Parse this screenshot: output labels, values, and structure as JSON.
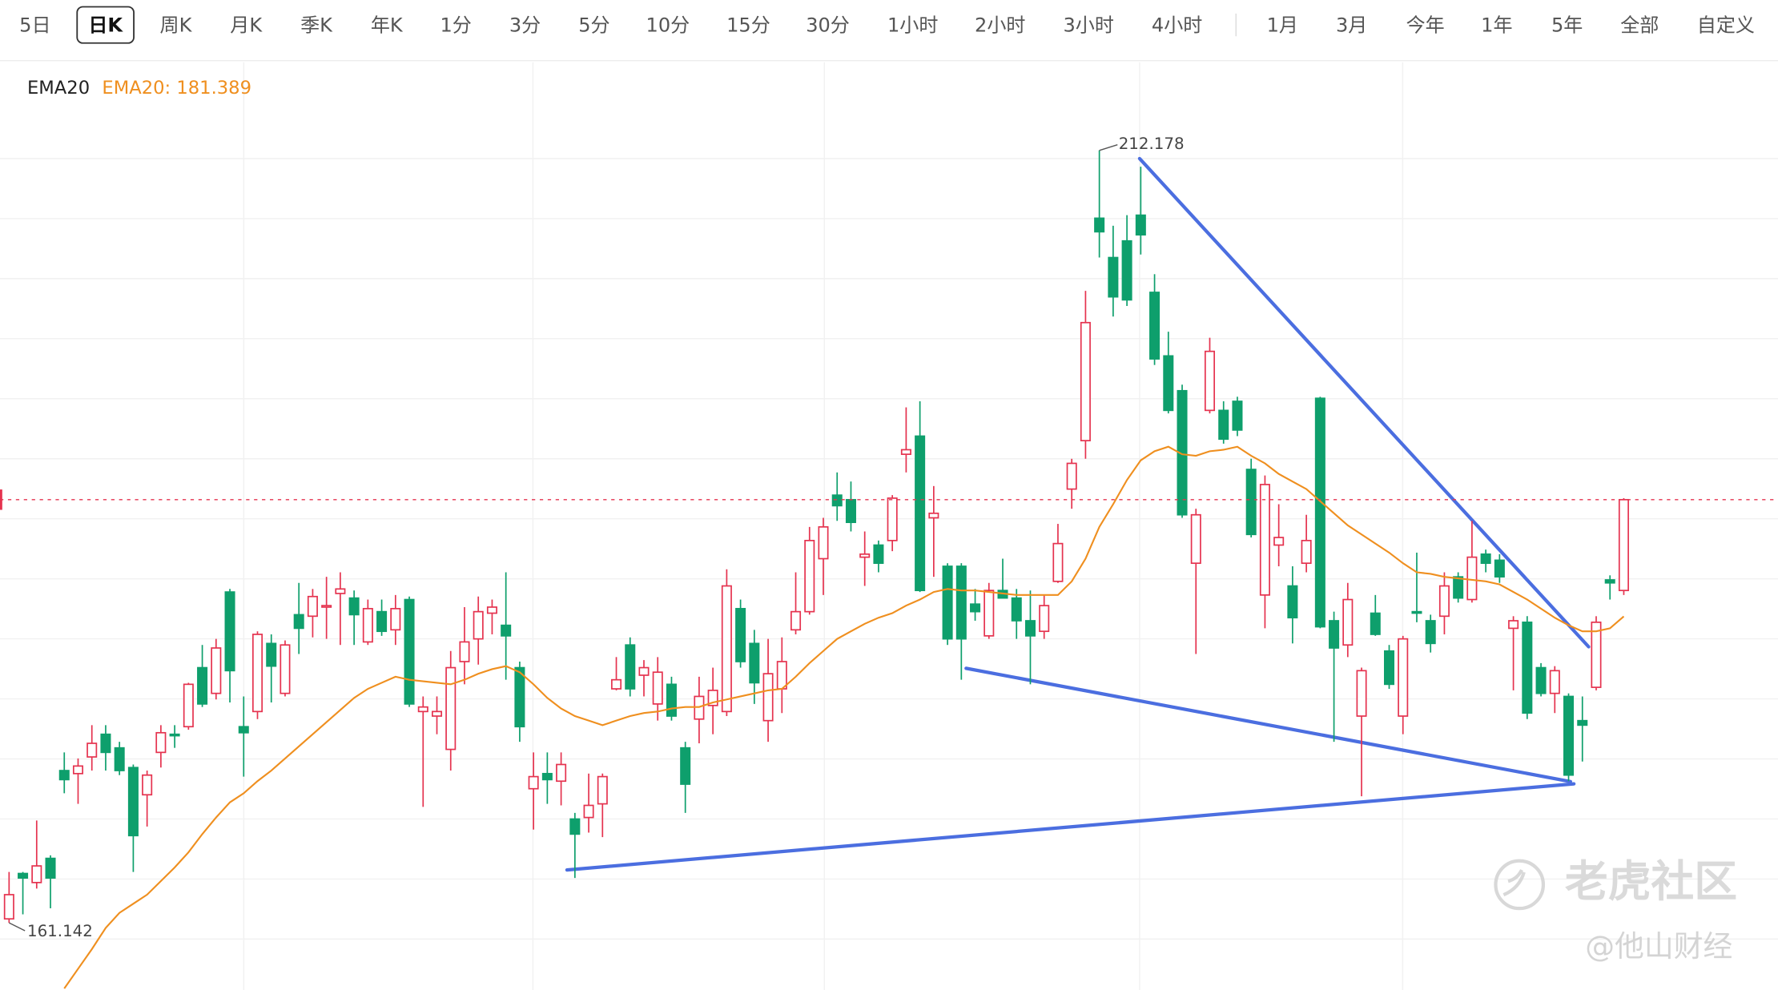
{
  "toolbar": {
    "tabs": [
      "5日",
      "日K",
      "周K",
      "月K",
      "季K",
      "年K",
      "1分",
      "3分",
      "5分",
      "10分",
      "15分",
      "30分",
      "1小时",
      "2小时",
      "3小时",
      "4小时",
      "1月",
      "3月",
      "今年",
      "1年",
      "5年",
      "全部",
      "自定义"
    ],
    "selected": 1
  },
  "chart_data": {
    "type": "candlestick",
    "indicator": "EMA20",
    "open": [
      161.4,
      164.4,
      163.8,
      165.4,
      171.2,
      171.0,
      172.1,
      173.6,
      172.7,
      171.4,
      169.6,
      172.4,
      173.6,
      174.1,
      178.0,
      176.3,
      183.0,
      174.1,
      175.1,
      179.6,
      176.3,
      181.5,
      181.4,
      182.0,
      182.9,
      182.6,
      179.7,
      181.7,
      180.5,
      182.5,
      175.1,
      174.8,
      172.6,
      178.4,
      179.9,
      181.6,
      180.8,
      178.0,
      170.0,
      171.0,
      170.5,
      168.0,
      168.1,
      169.0,
      176.6,
      179.5,
      177.5,
      175.6,
      176.9,
      172.7,
      174.6,
      175.5,
      175.1,
      181.9,
      179.6,
      174.5,
      176.6,
      180.5,
      181.7,
      185.2,
      189.4,
      189.1,
      185.3,
      186.1,
      186.4,
      192.1,
      193.3,
      187.9,
      184.7,
      184.7,
      182.2,
      180.1,
      183.1,
      182.6,
      181.1,
      180.4,
      183.7,
      189.8,
      193.0,
      207.7,
      205.1,
      206.2,
      207.9,
      202.8,
      198.6,
      196.3,
      184.9,
      195.0,
      195.0,
      195.6,
      191.1,
      182.8,
      186.1,
      183.4,
      184.9,
      195.8,
      181.1,
      179.5,
      174.8,
      181.6,
      179.1,
      174.8,
      181.7,
      181.1,
      181.4,
      184.0,
      182.5,
      185.5,
      185.1,
      180.6,
      181.0,
      178.0,
      176.3,
      176.1,
      174.5,
      176.7,
      183.8,
      183.1
    ],
    "high": [
      164.5,
      164.5,
      167.9,
      165.6,
      172.4,
      172.0,
      174.2,
      174.2,
      173.1,
      171.6,
      171.2,
      174.2,
      174.2,
      177.0,
      179.5,
      179.9,
      183.2,
      176.1,
      180.4,
      180.2,
      179.8,
      183.6,
      183.2,
      184.0,
      184.3,
      183.1,
      182.5,
      182.5,
      182.8,
      182.7,
      176.1,
      176.1,
      179.1,
      182.0,
      182.7,
      182.5,
      184.3,
      178.4,
      172.4,
      172.4,
      172.4,
      168.4,
      171.0,
      171.0,
      178.7,
      180.0,
      178.5,
      178.7,
      177.4,
      173.1,
      177.4,
      178.0,
      184.5,
      182.5,
      180.5,
      179.9,
      180.0,
      184.3,
      187.3,
      187.9,
      190.9,
      190.3,
      187.0,
      186.4,
      189.4,
      195.2,
      195.6,
      190.0,
      184.9,
      184.9,
      183.2,
      183.6,
      185.2,
      183.2,
      183.1,
      182.8,
      187.5,
      191.8,
      202.9,
      212.178,
      207.2,
      207.9,
      211.1,
      204.0,
      200.2,
      196.7,
      188.5,
      199.8,
      195.6,
      195.9,
      191.8,
      190.7,
      188.8,
      184.7,
      188.1,
      195.9,
      181.7,
      183.6,
      178.0,
      182.8,
      179.5,
      180.1,
      185.6,
      181.5,
      184.3,
      184.3,
      187.7,
      185.8,
      185.5,
      181.4,
      181.4,
      178.3,
      178.1,
      176.3,
      176.1,
      181.4,
      184.1,
      189.2
    ],
    "low": [
      161.142,
      161.7,
      163.4,
      162.1,
      169.7,
      169.0,
      171.2,
      171.2,
      170.9,
      164.5,
      167.5,
      171.4,
      172.7,
      173.9,
      175.4,
      175.9,
      175.7,
      170.8,
      174.6,
      175.7,
      176.1,
      178.9,
      180.0,
      179.9,
      179.5,
      179.5,
      179.5,
      180.1,
      179.5,
      175.4,
      168.8,
      173.6,
      171.2,
      176.9,
      178.2,
      180.2,
      177.2,
      173.1,
      167.3,
      169.0,
      168.9,
      164.1,
      167.1,
      166.8,
      176.5,
      176.1,
      176.1,
      174.5,
      174.5,
      168.4,
      173.0,
      173.6,
      174.8,
      178.0,
      175.6,
      173.1,
      175.0,
      180.2,
      181.5,
      182.8,
      187.7,
      187.0,
      183.4,
      184.3,
      185.7,
      190.9,
      183.0,
      184.0,
      179.5,
      177.2,
      181.1,
      179.9,
      182.6,
      179.9,
      176.9,
      179.9,
      183.6,
      188.5,
      191.8,
      205.1,
      201.2,
      201.9,
      205.3,
      198.0,
      194.8,
      187.9,
      178.9,
      194.8,
      192.8,
      193.3,
      186.6,
      180.6,
      184.7,
      179.6,
      184.3,
      180.6,
      173.1,
      178.7,
      169.5,
      180.1,
      176.6,
      173.6,
      181.0,
      179.0,
      180.2,
      182.3,
      182.3,
      184.3,
      183.6,
      176.5,
      174.6,
      176.1,
      175.0,
      170.5,
      171.8,
      176.5,
      182.5,
      182.8
    ],
    "close": [
      163.0,
      164.1,
      164.9,
      164.1,
      170.6,
      171.5,
      173.0,
      172.4,
      171.2,
      166.9,
      170.9,
      173.7,
      173.5,
      176.9,
      175.6,
      179.3,
      177.8,
      173.7,
      180.2,
      178.1,
      179.5,
      180.6,
      182.7,
      182.1,
      183.2,
      181.5,
      181.9,
      180.4,
      181.9,
      175.6,
      175.4,
      175.1,
      178.0,
      179.7,
      181.7,
      182.0,
      180.1,
      174.1,
      170.8,
      170.6,
      171.6,
      167.0,
      168.9,
      170.8,
      177.2,
      176.6,
      178.0,
      177.7,
      174.8,
      170.3,
      176.1,
      176.5,
      183.4,
      178.4,
      177.0,
      177.6,
      178.4,
      181.7,
      186.4,
      187.3,
      188.7,
      187.6,
      185.5,
      184.9,
      189.2,
      192.4,
      183.1,
      188.2,
      179.9,
      179.9,
      181.7,
      183.1,
      182.6,
      181.1,
      180.1,
      182.1,
      186.2,
      191.5,
      200.8,
      206.8,
      202.5,
      202.3,
      206.6,
      198.4,
      195.0,
      188.1,
      188.1,
      198.9,
      193.1,
      193.7,
      186.8,
      190.1,
      186.6,
      181.3,
      186.4,
      180.7,
      179.3,
      182.5,
      177.8,
      180.2,
      176.9,
      179.9,
      181.6,
      179.6,
      183.4,
      182.6,
      185.3,
      184.9,
      184.0,
      181.1,
      175.0,
      176.3,
      177.8,
      170.9,
      174.2,
      181.0,
      183.6,
      189.1
    ],
    "up_color": "#e5334f",
    "down_color": "#0e9f6c",
    "ylim": [
      156.7,
      218.0
    ],
    "grid": true,
    "series": [
      {
        "name": "EMA20: 181.389",
        "color": "#ef8f1f",
        "values": [
          null,
          null,
          null,
          null,
          156.8,
          158.1,
          159.4,
          160.8,
          161.8,
          162.4,
          163.0,
          163.9,
          164.8,
          165.8,
          167.0,
          168.1,
          169.1,
          169.7,
          170.5,
          171.2,
          172.0,
          172.8,
          173.6,
          174.4,
          175.2,
          176.0,
          176.6,
          177.0,
          177.4,
          177.2,
          177.1,
          177.0,
          176.9,
          177.2,
          177.6,
          177.9,
          178.1,
          177.7,
          176.9,
          176.0,
          175.3,
          174.8,
          174.5,
          174.2,
          174.5,
          174.8,
          175.0,
          175.1,
          175.3,
          175.4,
          175.4,
          175.7,
          175.9,
          176.1,
          176.3,
          176.5,
          176.6,
          177.4,
          178.3,
          179.1,
          179.9,
          180.4,
          180.9,
          181.3,
          181.6,
          182.1,
          182.5,
          183.0,
          183.2,
          183.1,
          183.1,
          183.0,
          182.9,
          182.8,
          182.8,
          182.8,
          182.8,
          183.7,
          185.2,
          187.3,
          188.8,
          190.4,
          191.7,
          192.3,
          192.6,
          192.1,
          192.0,
          192.3,
          192.4,
          192.6,
          192.0,
          191.5,
          190.8,
          190.3,
          189.8,
          189.0,
          188.2,
          187.4,
          186.8,
          186.2,
          185.6,
          184.9,
          184.3,
          184.2,
          184.0,
          183.9,
          183.8,
          183.7,
          183.5,
          183.0,
          182.5,
          181.9,
          181.3,
          180.8,
          180.4,
          180.4,
          180.6,
          181.389
        ]
      }
    ]
  },
  "watermark": {
    "brand": "老虎社区",
    "author": "@他山财经"
  }
}
